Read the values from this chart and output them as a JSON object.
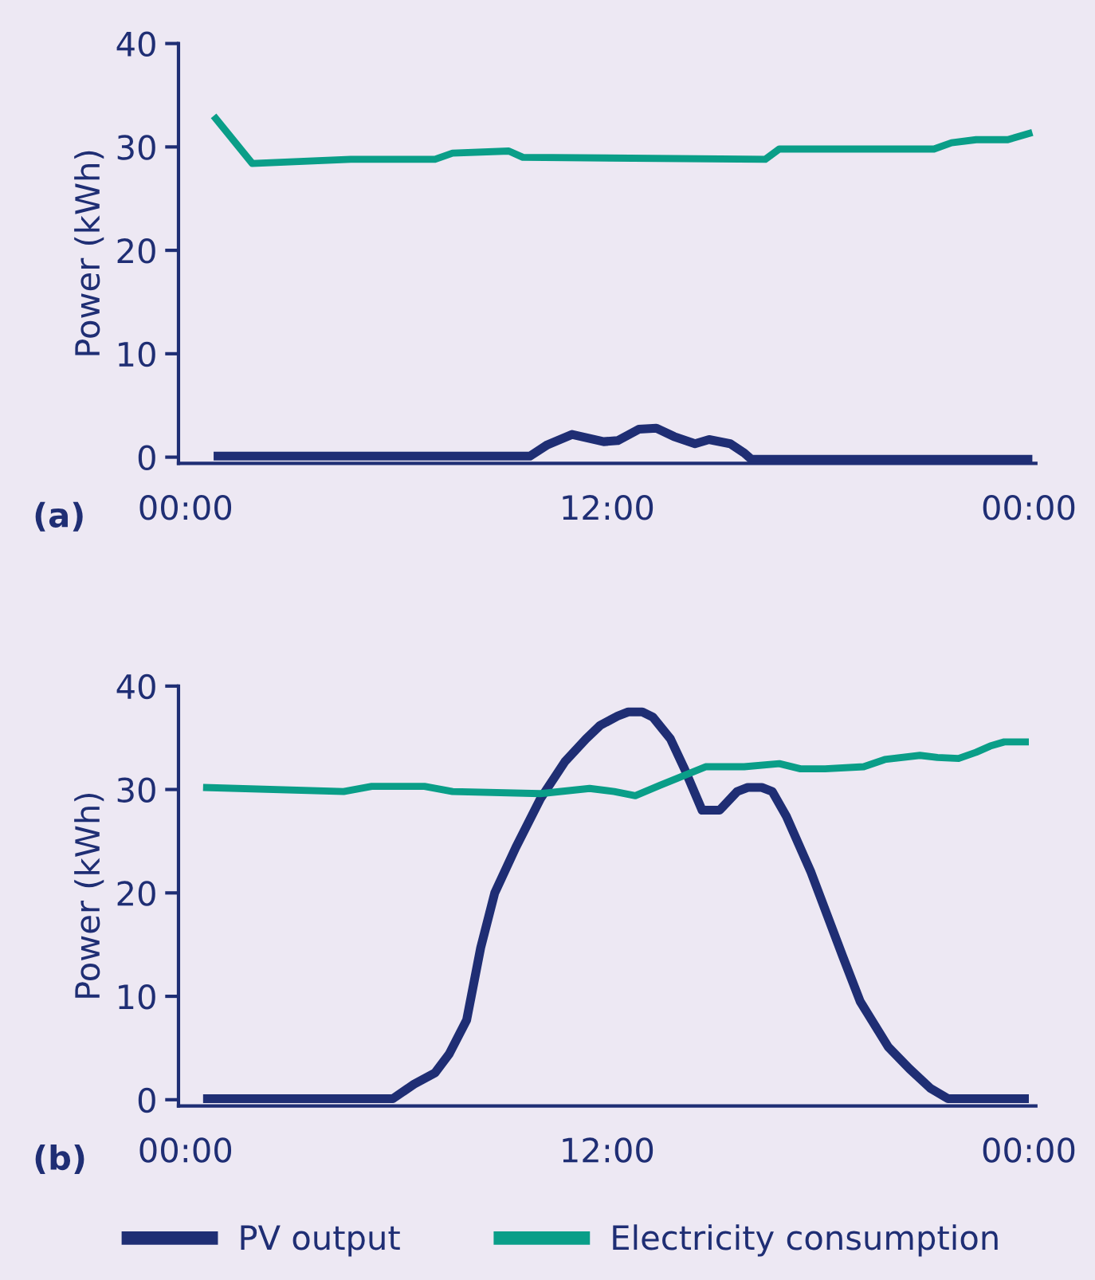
{
  "chart_data": [
    {
      "type": "line",
      "ylabel": "Power (kWh)",
      "annotations": [
        "(a)"
      ],
      "xlim": [
        -0.2,
        24.2
      ],
      "xticks": [
        {
          "value": 0,
          "label": "00:00"
        },
        {
          "value": 12,
          "label": "12:00"
        },
        {
          "value": 24,
          "label": "00:00"
        }
      ],
      "ylim": [
        -0.6,
        40
      ],
      "yticks": [
        0,
        10,
        20,
        30,
        40
      ],
      "grid": false,
      "legend": false,
      "marker": "none",
      "line_style": "solid",
      "series": [
        {
          "color": "#1f2e74",
          "x": [
            0.8,
            9.8,
            10.3,
            11.0,
            11.9,
            12.3,
            12.9,
            13.4,
            13.9,
            14.5,
            14.9,
            15.5,
            15.9,
            16.1,
            24.1
          ],
          "values": [
            0.1,
            0.1,
            1.2,
            2.2,
            1.5,
            1.6,
            2.7,
            2.8,
            2.0,
            1.3,
            1.7,
            1.3,
            0.4,
            -0.2,
            -0.2
          ]
        },
        {
          "color": "#0a9e88",
          "x": [
            0.8,
            1.9,
            4.7,
            7.1,
            7.6,
            9.2,
            9.6,
            16.5,
            16.9,
            21.3,
            21.8,
            22.5,
            23.4,
            24.1
          ],
          "values": [
            33.0,
            28.4,
            28.8,
            28.8,
            29.4,
            29.6,
            29.0,
            28.8,
            29.8,
            29.8,
            30.4,
            30.7,
            30.7,
            31.4
          ]
        }
      ]
    },
    {
      "type": "line",
      "ylabel": "Power (kWh)",
      "annotations": [
        "(b)"
      ],
      "xlim": [
        -0.2,
        24.2
      ],
      "xticks": [
        {
          "value": 0,
          "label": "00:00"
        },
        {
          "value": 12,
          "label": "12:00"
        },
        {
          "value": 24,
          "label": "00:00"
        }
      ],
      "ylim": [
        -0.6,
        40
      ],
      "yticks": [
        0,
        10,
        20,
        30,
        40
      ],
      "grid": false,
      "legend": "bottom",
      "marker": "none",
      "line_style": "solid",
      "series": [
        {
          "name": "PV output",
          "color": "#1f2e74",
          "x": [
            0.5,
            5.9,
            6.5,
            7.1,
            7.5,
            8.0,
            8.4,
            8.8,
            9.4,
            10.1,
            10.8,
            11.4,
            11.8,
            12.3,
            12.6,
            13.0,
            13.3,
            13.8,
            14.2,
            14.7,
            15.2,
            15.7,
            16.0,
            16.4,
            16.7,
            17.1,
            17.8,
            18.7,
            19.2,
            20.0,
            20.6,
            21.2,
            21.7,
            24.0
          ],
          "values": [
            0.1,
            0.1,
            1.5,
            2.6,
            4.4,
            7.7,
            14.7,
            20.0,
            24.4,
            29.1,
            32.7,
            34.9,
            36.2,
            37.1,
            37.5,
            37.5,
            37.0,
            34.9,
            32.0,
            28.0,
            28.0,
            29.8,
            30.2,
            30.2,
            29.8,
            27.4,
            22.0,
            13.9,
            9.5,
            5.1,
            3.0,
            1.1,
            0.1,
            0.1
          ]
        },
        {
          "name": "Electricity consumption",
          "color": "#0a9e88",
          "x": [
            0.5,
            4.5,
            5.3,
            6.8,
            7.6,
            10.1,
            11.5,
            12.2,
            12.8,
            13.5,
            14.8,
            15.9,
            16.9,
            17.5,
            18.2,
            19.3,
            19.9,
            20.9,
            21.4,
            22.0,
            22.5,
            22.9,
            23.3,
            24.0
          ],
          "values": [
            30.2,
            29.8,
            30.3,
            30.3,
            29.8,
            29.6,
            30.1,
            29.8,
            29.4,
            30.4,
            32.2,
            32.2,
            32.5,
            32.0,
            32.0,
            32.2,
            32.9,
            33.3,
            33.1,
            33.0,
            33.6,
            34.2,
            34.6,
            34.6
          ]
        }
      ]
    }
  ]
}
